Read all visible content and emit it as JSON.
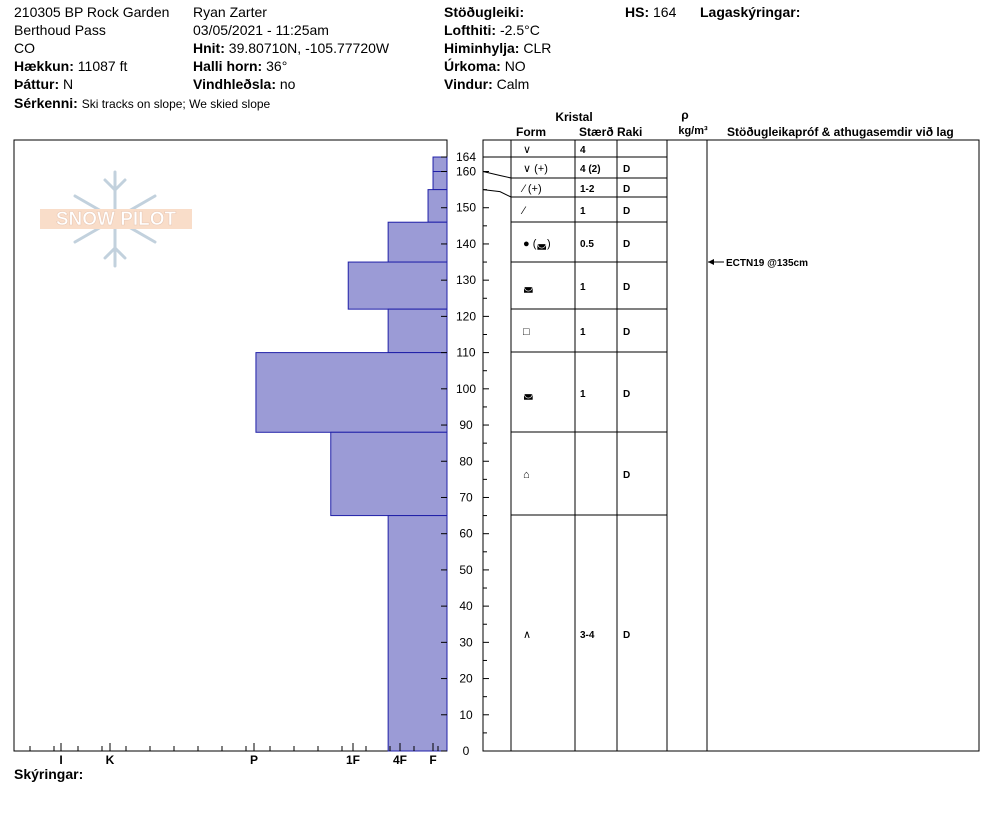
{
  "header": {
    "title": "210305 BP Rock Garden",
    "location": "Berthoud Pass",
    "state": "CO",
    "elevation_label": "Hækkun:",
    "elevation": "11087 ft",
    "aspect_label": "Þáttur:",
    "aspect": "N",
    "features_label": "Sérkenni:",
    "features": "Ski tracks on slope; We skied slope",
    "observer": "Ryan Zarter",
    "datetime": "03/05/2021 - 11:25am",
    "coords_label": "Hnit:",
    "coords": "39.80710N, -105.77720W",
    "slope_label": "Halli horn:",
    "slope": "36°",
    "wind_loading_label": "Vindhleðsla:",
    "wind_loading": "no",
    "stability_label": "Stöðugleiki:",
    "stability": "",
    "air_temp_label": "Lofthiti:",
    "air_temp": "-2.5°C",
    "sky_label": "Himinhylja:",
    "sky": "CLR",
    "precip_label": "Úrkoma:",
    "precip": "NO",
    "wind_label": "Vindur:",
    "wind": "Calm",
    "hs_label": "HS:",
    "hs": "164",
    "layer_notes_label": "Lagaskýringar:"
  },
  "table_headers": {
    "crystal": "Kristal",
    "form": "Form",
    "size": "Stærð",
    "moisture": "Raki",
    "rho": "ρ",
    "density_unit": "kg/m³",
    "tests": "Stöðugleikapróf & athugasemdir við lag"
  },
  "footer": {
    "notes_label": "Skýringar:"
  },
  "logo_text": "SNOW PILOT",
  "colors": {
    "hardness_fill": "#9b9bd6",
    "hardness_stroke": "#2020a8"
  },
  "chart_data": {
    "type": "bar",
    "orientation": "horizontal",
    "title": "",
    "ylabel": "",
    "ylim": [
      0,
      164
    ],
    "y_ticks": [
      0,
      10,
      20,
      30,
      40,
      50,
      60,
      70,
      80,
      90,
      100,
      110,
      120,
      130,
      140,
      150,
      160,
      164
    ],
    "x_categories": [
      "I",
      "K",
      "P",
      "1F",
      "4F",
      "F"
    ],
    "layers": [
      {
        "top": 164,
        "bottom": 160,
        "hardness_width": 0.04
      },
      {
        "top": 160,
        "bottom": 155,
        "hardness_width": 0.04
      },
      {
        "top": 155,
        "bottom": 146,
        "hardness_width": 0.06
      },
      {
        "top": 146,
        "bottom": 135,
        "hardness_width": 0.22
      },
      {
        "top": 135,
        "bottom": 122,
        "hardness_width": 0.38
      },
      {
        "top": 122,
        "bottom": 110,
        "hardness_width": 0.22
      },
      {
        "top": 110,
        "bottom": 88,
        "hardness_width": 0.75
      },
      {
        "top": 88,
        "bottom": 65,
        "hardness_width": 0.45
      },
      {
        "top": 65,
        "bottom": 0,
        "hardness_width": 0.22
      }
    ]
  },
  "grain_rows": [
    {
      "top": 164,
      "bottom": 160,
      "form": "∨",
      "size": "4",
      "moisture": ""
    },
    {
      "top": 160,
      "bottom": 155,
      "form": "∨ (+)",
      "size": "4 (2)",
      "moisture": "D"
    },
    {
      "top": 155,
      "bottom": 146,
      "form": "⁄ (+)",
      "size": "1-2",
      "moisture": "D"
    },
    {
      "top": 146,
      "bottom": 135,
      "form": "⁄",
      "size": "1",
      "moisture": "D"
    },
    {
      "top": 135,
      "bottom": 122,
      "form": "● (◛)",
      "size": "0.5",
      "moisture": "D"
    },
    {
      "top": 122,
      "bottom": 110,
      "form": "◛",
      "size": "1",
      "moisture": "D"
    },
    {
      "top": 110,
      "bottom": 88,
      "form": "□",
      "size": "1",
      "moisture": "D"
    },
    {
      "top": 88,
      "bottom": 65,
      "form": "◛",
      "size": "1",
      "moisture": "D"
    },
    {
      "top": 65,
      "bottom": 0,
      "form": "⌂",
      "size": "",
      "moisture": "D"
    },
    {
      "top": 65,
      "bottom": 0,
      "form": "∧",
      "size": "3-4",
      "moisture": "D"
    }
  ],
  "test_result": {
    "label": "ECTN19 @135cm",
    "height": 135
  }
}
